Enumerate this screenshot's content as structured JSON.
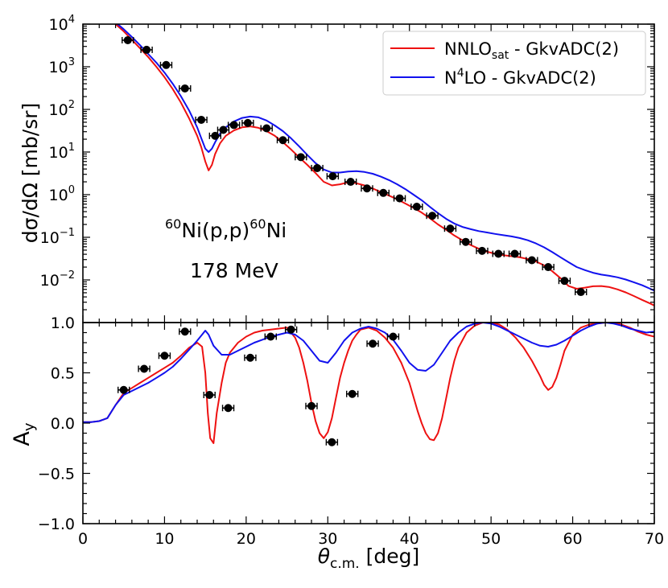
{
  "chart_data": [
    {
      "type": "line",
      "ylabel": "dσ/dΩ [mb/sr]",
      "yscale": "log",
      "ylim": [
        0.001,
        10000
      ],
      "xlim": [
        0,
        70
      ],
      "ytick_labels": [
        "10^-2",
        "10^-1",
        "10^0",
        "10^1",
        "10^2",
        "10^3",
        "10^4"
      ],
      "annotation": {
        "reaction_pre": "60",
        "reaction_mid": "Ni(p,p)",
        "reaction_post": "60",
        "reaction_end": "Ni",
        "energy": "178 MeV"
      },
      "legend_position": "top-right",
      "legend": [
        {
          "base": "NNLO",
          "sub": "sat",
          "rest": " - GkvADC(2)"
        },
        {
          "base": "N",
          "sup": "4",
          "rest": "LO - GkvADC(2)"
        }
      ],
      "series": [
        {
          "name": "NNLO_sat - GkvADC(2)",
          "color": "#ee1111",
          "x": [
            4,
            5,
            6,
            7,
            8,
            9,
            10,
            11,
            12,
            13,
            14,
            14.5,
            15,
            15.4,
            15.8,
            16.2,
            16.8,
            17.5,
            18.5,
            19.5,
            20.5,
            21.5,
            22.5,
            23.5,
            24.5,
            25.5,
            26.5,
            27.5,
            28.5,
            29.5,
            30.5,
            31.5,
            32.5,
            33.5,
            34.5,
            35.5,
            36.5,
            37.5,
            38.5,
            39.5,
            40.5,
            41.5,
            42.5,
            43.5,
            44.5,
            45.5,
            46.5,
            47.5,
            48.5,
            49.5,
            50.5,
            51.5,
            52.5,
            53.5,
            54.5,
            55.5,
            56.5,
            57.5,
            58.5,
            59.5,
            60.5,
            61.5,
            62.5,
            63.5,
            64.5,
            65.5,
            66.5,
            67.5,
            68.5,
            69.5,
            70
          ],
          "y": [
            10000,
            6800,
            4300,
            2700,
            1700,
            1000,
            570,
            300,
            145,
            62,
            24,
            13,
            6,
            3.7,
            5,
            9,
            16,
            24,
            32,
            38,
            40,
            37,
            31,
            24,
            17,
            11.5,
            7.5,
            5,
            3.2,
            2,
            1.65,
            1.75,
            1.95,
            1.85,
            1.65,
            1.4,
            1.15,
            0.95,
            0.78,
            0.62,
            0.49,
            0.38,
            0.28,
            0.2,
            0.15,
            0.11,
            0.085,
            0.066,
            0.054,
            0.046,
            0.041,
            0.038,
            0.036,
            0.034,
            0.031,
            0.027,
            0.022,
            0.016,
            0.011,
            0.0072,
            0.0062,
            0.0066,
            0.0071,
            0.0072,
            0.0068,
            0.006,
            0.0051,
            0.0042,
            0.0034,
            0.0028,
            0.0025
          ]
        },
        {
          "name": "N4LO - GkvADC(2)",
          "color": "#1111ee",
          "x": [
            4,
            5,
            6,
            7,
            8,
            9,
            10,
            11,
            12,
            13,
            14,
            14.5,
            15,
            15.4,
            15.8,
            16.2,
            16.8,
            17.5,
            18.5,
            19.5,
            20.5,
            21.5,
            22.5,
            23.5,
            24.5,
            25.5,
            26.5,
            27.5,
            28.5,
            29.5,
            30.5,
            31.5,
            32.5,
            33.5,
            34.5,
            35.5,
            36.5,
            37.5,
            38.5,
            39.5,
            40.5,
            41.5,
            42.5,
            43.5,
            44.5,
            45.5,
            46.5,
            47.5,
            48.5,
            49.5,
            50.5,
            51.5,
            52.5,
            53.5,
            54.5,
            55.5,
            56.5,
            57.5,
            58.5,
            59.5,
            60.5,
            61.5,
            62.5,
            63.5,
            64.5,
            65.5,
            66.5,
            67.5,
            68.5,
            69.5,
            70
          ],
          "y": [
            11000,
            7600,
            5000,
            3200,
            2000,
            1250,
            730,
            400,
            205,
            95,
            38,
            21,
            12,
            10,
            12,
            17,
            27,
            38,
            52,
            63,
            68,
            65,
            55,
            42,
            31,
            21,
            13.5,
            8.5,
            5.5,
            3.9,
            3.3,
            3.3,
            3.5,
            3.55,
            3.4,
            3.1,
            2.65,
            2.2,
            1.75,
            1.35,
            1,
            0.74,
            0.52,
            0.37,
            0.27,
            0.21,
            0.175,
            0.155,
            0.14,
            0.13,
            0.12,
            0.112,
            0.105,
            0.096,
            0.085,
            0.072,
            0.058,
            0.045,
            0.034,
            0.026,
            0.02,
            0.017,
            0.0147,
            0.0133,
            0.0125,
            0.0115,
            0.0102,
            0.0088,
            0.0075,
            0.0062,
            0.0056
          ]
        },
        {
          "name": "data",
          "type": "scatter",
          "color": "#000000",
          "x": [
            5.5,
            7.8,
            10.2,
            12.5,
            14.5,
            16.2,
            17.2,
            18.5,
            20.2,
            22.5,
            24.5,
            26.7,
            28.7,
            30.6,
            32.8,
            34.8,
            36.8,
            38.8,
            40.9,
            42.8,
            45,
            46.9,
            48.9,
            50.9,
            52.9,
            55,
            57,
            59,
            61
          ],
          "y": [
            4200,
            2500,
            1100,
            310,
            57,
            24,
            33,
            43,
            48,
            36,
            19,
            7.6,
            4.2,
            2.7,
            2,
            1.4,
            1.1,
            0.82,
            0.52,
            0.32,
            0.16,
            0.078,
            0.048,
            0.041,
            0.041,
            0.029,
            0.02,
            0.0095,
            0.0052
          ]
        }
      ]
    },
    {
      "type": "line",
      "ylabel": "A_y",
      "ylabel_base": "A",
      "ylabel_sub": "y",
      "xlabel_base": "θ",
      "xlabel_sub": "c.m.",
      "xlabel_rest": " [deg]",
      "ylim": [
        -1.0,
        1.0
      ],
      "xlim": [
        0,
        70
      ],
      "ytick_labels": [
        "−1.0",
        "−0.5",
        "0.0",
        "0.5",
        "1.0"
      ],
      "xtick_labels": [
        "0",
        "10",
        "20",
        "30",
        "40",
        "50",
        "60",
        "70"
      ],
      "series": [
        {
          "name": "NNLO_sat - GkvADC(2)",
          "color": "#ee1111",
          "x": [
            0,
            1,
            2,
            3,
            4,
            5,
            6,
            7,
            8,
            9,
            10,
            11,
            12,
            13,
            14,
            14.6,
            15,
            15.3,
            15.6,
            16,
            16.4,
            17,
            17.5,
            18,
            19,
            20,
            21,
            22,
            23,
            24,
            25,
            25.5,
            26,
            26.5,
            27,
            27.5,
            28,
            28.5,
            29,
            29.5,
            30,
            30.5,
            31,
            31.5,
            32,
            32.5,
            33,
            33.5,
            34,
            35,
            36,
            37,
            38,
            39,
            40,
            40.5,
            41,
            41.5,
            42,
            42.5,
            43,
            43.5,
            44,
            44.5,
            45,
            45.5,
            46,
            47,
            48,
            49,
            50,
            51,
            52,
            53,
            54,
            55,
            56,
            56.5,
            57,
            57.5,
            58,
            58.5,
            59,
            60,
            61,
            62,
            63,
            64,
            65,
            66,
            67,
            68,
            69,
            70
          ],
          "y": [
            0.01,
            0.01,
            0.02,
            0.05,
            0.18,
            0.3,
            0.35,
            0.4,
            0.45,
            0.5,
            0.55,
            0.6,
            0.67,
            0.75,
            0.8,
            0.76,
            0.5,
            0.1,
            -0.15,
            -0.2,
            0.1,
            0.4,
            0.6,
            0.7,
            0.8,
            0.86,
            0.9,
            0.92,
            0.93,
            0.94,
            0.95,
            0.9,
            0.85,
            0.75,
            0.6,
            0.42,
            0.2,
            0.02,
            -0.1,
            -0.15,
            -0.09,
            0.05,
            0.25,
            0.45,
            0.6,
            0.72,
            0.82,
            0.88,
            0.93,
            0.95,
            0.92,
            0.85,
            0.75,
            0.6,
            0.4,
            0.26,
            0.12,
            0.0,
            -0.1,
            -0.16,
            -0.17,
            -0.1,
            0.05,
            0.25,
            0.45,
            0.62,
            0.75,
            0.9,
            0.97,
            1.0,
            1.0,
            0.98,
            0.93,
            0.85,
            0.75,
            0.62,
            0.47,
            0.38,
            0.33,
            0.36,
            0.45,
            0.58,
            0.72,
            0.88,
            0.95,
            0.98,
            0.99,
            1.0,
            1.0,
            0.98,
            0.95,
            0.91,
            0.88,
            0.86
          ]
        },
        {
          "name": "N4LO - GkvADC(2)",
          "color": "#1111ee",
          "x": [
            0,
            1,
            2,
            3,
            4,
            5,
            6,
            7,
            8,
            9,
            10,
            11,
            12,
            13,
            14,
            14.6,
            15,
            15.4,
            16,
            17,
            18,
            19,
            20,
            21,
            22,
            23,
            24,
            25,
            26,
            27,
            28,
            29,
            30,
            31,
            32,
            33,
            34,
            35,
            36,
            37,
            38,
            39,
            40,
            41,
            42,
            43,
            44,
            45,
            46,
            47,
            48,
            49,
            50,
            51,
            52,
            53,
            54,
            55,
            56,
            57,
            58,
            59,
            60,
            61,
            62,
            63,
            64,
            65,
            66,
            67,
            68,
            69,
            70
          ],
          "y": [
            0.01,
            0.01,
            0.02,
            0.05,
            0.18,
            0.28,
            0.32,
            0.36,
            0.4,
            0.45,
            0.5,
            0.56,
            0.64,
            0.73,
            0.82,
            0.88,
            0.92,
            0.88,
            0.77,
            0.68,
            0.68,
            0.72,
            0.76,
            0.8,
            0.83,
            0.86,
            0.88,
            0.9,
            0.88,
            0.82,
            0.72,
            0.62,
            0.6,
            0.7,
            0.82,
            0.9,
            0.94,
            0.96,
            0.94,
            0.9,
            0.83,
            0.72,
            0.6,
            0.53,
            0.52,
            0.58,
            0.7,
            0.82,
            0.9,
            0.96,
            0.99,
            1.0,
            0.99,
            0.96,
            0.92,
            0.88,
            0.84,
            0.8,
            0.77,
            0.76,
            0.78,
            0.82,
            0.87,
            0.92,
            0.96,
            0.99,
            1.0,
            0.99,
            0.97,
            0.94,
            0.92,
            0.9,
            0.91
          ]
        },
        {
          "name": "data",
          "type": "scatter",
          "color": "#000000",
          "x": [
            5,
            7.5,
            10,
            12.5,
            15.5,
            17.8,
            20.5,
            23,
            25.5,
            28,
            30.5,
            33,
            35.5,
            38
          ],
          "y": [
            0.33,
            0.54,
            0.67,
            0.91,
            0.28,
            0.15,
            0.65,
            0.86,
            0.93,
            0.17,
            -0.19,
            0.29,
            0.79,
            0.86
          ]
        }
      ]
    }
  ]
}
